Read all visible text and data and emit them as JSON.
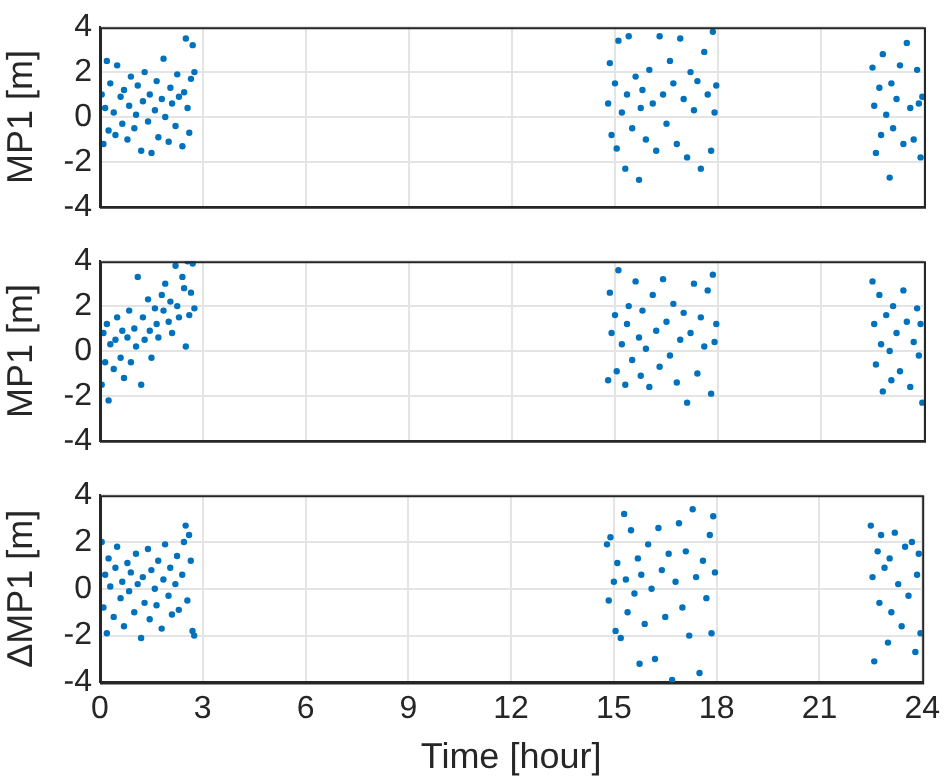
{
  "chart_data": [
    {
      "type": "scatter",
      "ylabel": "MP1 [m]",
      "xlim": [
        0,
        24
      ],
      "xticks": [
        0,
        3,
        6,
        9,
        12,
        15,
        18,
        21,
        24
      ],
      "ylim": [
        -4,
        4
      ],
      "yticks": [
        -4,
        -2,
        0,
        2,
        4
      ],
      "grid": true,
      "tick_labels": "y",
      "marker": "circle",
      "series": [
        {
          "color": "#0072bd",
          "x": [
            0.05,
            0.1,
            0.15,
            0.2,
            0.25,
            0.3,
            0.4,
            0.45,
            0.5,
            0.6,
            0.65,
            0.7,
            0.8,
            0.85,
            0.9,
            1.0,
            1.05,
            1.1,
            1.2,
            1.25,
            1.3,
            1.4,
            1.45,
            1.5,
            1.6,
            1.65,
            1.7,
            1.8,
            1.85,
            1.9,
            2.0,
            2.05,
            2.1,
            2.2,
            2.25,
            2.3,
            2.4,
            2.45,
            2.5,
            2.55,
            2.6,
            2.65,
            2.7,
            2.75,
            14.8,
            14.85,
            14.9,
            15.0,
            15.05,
            15.1,
            15.2,
            15.3,
            15.35,
            15.4,
            15.5,
            15.6,
            15.7,
            15.75,
            15.8,
            15.9,
            16.0,
            16.1,
            16.2,
            16.3,
            16.4,
            16.5,
            16.6,
            16.7,
            16.8,
            16.9,
            17.0,
            17.1,
            17.2,
            17.3,
            17.4,
            17.5,
            17.6,
            17.7,
            17.8,
            17.85,
            17.9,
            17.95,
            22.5,
            22.55,
            22.6,
            22.7,
            22.75,
            22.8,
            22.9,
            23.0,
            23.05,
            23.1,
            23.2,
            23.3,
            23.4,
            23.5,
            23.6,
            23.7,
            23.8,
            23.85,
            23.9,
            23.95
          ],
          "values": [
            1.0,
            -1.2,
            0.4,
            2.5,
            -0.6,
            1.5,
            0.2,
            -0.8,
            2.3,
            0.9,
            -0.3,
            1.2,
            -1.0,
            0.5,
            1.8,
            -0.5,
            0.1,
            1.4,
            -1.5,
            0.7,
            2.0,
            -0.2,
            1.0,
            -1.6,
            0.3,
            1.6,
            -0.9,
            0.8,
            2.6,
            0.0,
            -1.1,
            1.3,
            0.6,
            -0.4,
            1.9,
            0.9,
            -1.3,
            1.1,
            3.5,
            0.4,
            -0.7,
            1.7,
            3.2,
            2.0,
            0.6,
            2.4,
            -0.8,
            1.5,
            -1.4,
            3.4,
            0.2,
            -2.3,
            1.0,
            3.6,
            -0.5,
            1.8,
            -2.8,
            0.4,
            1.2,
            -1.0,
            2.1,
            0.6,
            -1.5,
            3.6,
            1.0,
            -0.3,
            2.5,
            1.5,
            -1.2,
            3.5,
            0.8,
            -1.8,
            2.0,
            0.3,
            1.6,
            -2.3,
            2.9,
            1.0,
            -1.5,
            3.8,
            0.2,
            1.4,
            2.2,
            0.5,
            -1.6,
            1.3,
            -0.8,
            2.8,
            0.1,
            -2.7,
            1.5,
            -0.5,
            0.8,
            2.3,
            -1.2,
            3.3,
            0.4,
            -1.0,
            2.1,
            0.6,
            -1.8,
            0.9
          ]
        }
      ]
    },
    {
      "type": "scatter",
      "ylabel": "MP1 [m]",
      "xlim": [
        0,
        24
      ],
      "xticks": [
        0,
        3,
        6,
        9,
        12,
        15,
        18,
        21,
        24
      ],
      "ylim": [
        -4,
        4
      ],
      "yticks": [
        -4,
        -2,
        0,
        2,
        4
      ],
      "grid": true,
      "tick_labels": "y",
      "marker": "circle",
      "series": [
        {
          "color": "#0072bd",
          "x": [
            0.05,
            0.1,
            0.15,
            0.2,
            0.25,
            0.3,
            0.4,
            0.45,
            0.5,
            0.6,
            0.65,
            0.7,
            0.8,
            0.85,
            0.9,
            1.0,
            1.05,
            1.1,
            1.2,
            1.25,
            1.3,
            1.4,
            1.45,
            1.5,
            1.6,
            1.65,
            1.7,
            1.8,
            1.85,
            1.9,
            2.0,
            2.05,
            2.1,
            2.2,
            2.25,
            2.3,
            2.4,
            2.45,
            2.5,
            2.55,
            2.6,
            2.65,
            2.7,
            2.75,
            14.8,
            14.85,
            14.9,
            15.0,
            15.05,
            15.1,
            15.2,
            15.3,
            15.35,
            15.4,
            15.5,
            15.6,
            15.7,
            15.75,
            15.8,
            15.9,
            16.0,
            16.1,
            16.2,
            16.3,
            16.4,
            16.5,
            16.6,
            16.7,
            16.8,
            16.9,
            17.0,
            17.1,
            17.2,
            17.3,
            17.4,
            17.5,
            17.6,
            17.7,
            17.8,
            17.85,
            17.9,
            17.95,
            22.5,
            22.55,
            22.6,
            22.7,
            22.75,
            22.8,
            22.9,
            23.0,
            23.05,
            23.1,
            23.2,
            23.3,
            23.4,
            23.5,
            23.6,
            23.7,
            23.8,
            23.85,
            23.9,
            23.95
          ],
          "values": [
            -1.5,
            0.8,
            -0.5,
            1.2,
            -2.2,
            0.3,
            -0.8,
            0.5,
            1.5,
            -0.3,
            0.9,
            -1.2,
            0.6,
            1.8,
            -0.5,
            1.0,
            0.2,
            3.3,
            -1.5,
            1.5,
            0.5,
            2.3,
            0.9,
            -0.3,
            1.9,
            1.2,
            0.6,
            2.5,
            1.8,
            3.0,
            1.3,
            2.2,
            0.8,
            3.8,
            2.0,
            1.5,
            3.3,
            2.8,
            0.2,
            4.0,
            1.6,
            2.6,
            3.9,
            1.9,
            -1.3,
            2.6,
            0.8,
            1.6,
            -0.9,
            3.6,
            0.3,
            -1.5,
            1.2,
            2.0,
            -0.4,
            3.1,
            0.6,
            -1.1,
            1.8,
            0.1,
            -1.6,
            2.5,
            0.9,
            -0.7,
            3.2,
            1.3,
            -0.2,
            2.1,
            -1.4,
            0.5,
            1.7,
            -2.3,
            0.8,
            3.0,
            -1.0,
            1.5,
            0.2,
            2.7,
            -1.9,
            3.4,
            0.4,
            1.2,
            3.1,
            1.2,
            -0.6,
            2.5,
            0.3,
            -1.8,
            1.6,
            0.0,
            -1.3,
            2.0,
            0.8,
            -0.9,
            2.7,
            1.3,
            -1.6,
            0.4,
            1.9,
            -0.2,
            1.2,
            -2.3
          ]
        }
      ]
    },
    {
      "type": "scatter",
      "xlabel": "Time [hour]",
      "ylabel": "ΔMP1 [m]",
      "xlim": [
        0,
        24
      ],
      "xticks": [
        0,
        3,
        6,
        9,
        12,
        15,
        18,
        21,
        24
      ],
      "ylim": [
        -4,
        4
      ],
      "yticks": [
        -4,
        -2,
        0,
        2,
        4
      ],
      "grid": true,
      "marker": "circle",
      "series": [
        {
          "color": "#0072bd",
          "x": [
            0.05,
            0.1,
            0.15,
            0.2,
            0.25,
            0.3,
            0.4,
            0.45,
            0.5,
            0.6,
            0.65,
            0.7,
            0.8,
            0.85,
            0.9,
            1.0,
            1.05,
            1.1,
            1.2,
            1.25,
            1.3,
            1.4,
            1.45,
            1.5,
            1.6,
            1.65,
            1.7,
            1.8,
            1.85,
            1.9,
            2.0,
            2.05,
            2.1,
            2.2,
            2.25,
            2.3,
            2.4,
            2.45,
            2.5,
            2.55,
            2.6,
            2.65,
            2.7,
            2.75,
            14.8,
            14.85,
            14.9,
            15.0,
            15.05,
            15.1,
            15.2,
            15.3,
            15.35,
            15.4,
            15.5,
            15.6,
            15.7,
            15.75,
            15.8,
            15.9,
            16.0,
            16.1,
            16.2,
            16.3,
            16.4,
            16.5,
            16.6,
            16.7,
            16.8,
            16.9,
            17.0,
            17.1,
            17.2,
            17.3,
            17.4,
            17.5,
            17.6,
            17.7,
            17.8,
            17.85,
            17.9,
            17.95,
            22.5,
            22.55,
            22.6,
            22.7,
            22.75,
            22.8,
            22.9,
            23.0,
            23.05,
            23.1,
            23.2,
            23.3,
            23.4,
            23.5,
            23.6,
            23.7,
            23.8,
            23.85,
            23.9,
            23.95
          ],
          "values": [
            2.0,
            -0.8,
            0.6,
            -1.9,
            1.3,
            0.1,
            -1.2,
            0.9,
            1.8,
            -0.4,
            0.3,
            -1.6,
            1.1,
            -0.1,
            0.7,
            -1.0,
            1.5,
            0.2,
            -2.1,
            0.5,
            -0.6,
            1.7,
            -1.3,
            0.8,
            0.0,
            -0.7,
            1.2,
            -1.7,
            0.4,
            1.9,
            -0.3,
            0.9,
            -1.1,
            0.2,
            1.4,
            -0.9,
            0.6,
            2.0,
            2.7,
            -0.5,
            2.3,
            1.2,
            -1.8,
            -2.0,
            1.9,
            -0.5,
            2.2,
            0.3,
            -1.8,
            1.1,
            -2.1,
            3.2,
            0.4,
            -1.0,
            2.5,
            -0.2,
            1.3,
            -3.2,
            0.6,
            -1.5,
            1.9,
            0.0,
            -3.0,
            2.6,
            0.8,
            -1.2,
            1.5,
            -3.9,
            0.3,
            2.8,
            -0.8,
            1.6,
            -2.0,
            3.4,
            0.5,
            -3.6,
            1.2,
            -0.4,
            2.3,
            -1.9,
            3.1,
            0.7,
            2.7,
            0.5,
            -3.1,
            1.6,
            -0.6,
            2.3,
            0.9,
            -2.3,
            1.3,
            -1.0,
            2.4,
            0.2,
            -1.6,
            1.8,
            -0.3,
            2.0,
            -2.7,
            0.6,
            1.5,
            -1.9
          ]
        }
      ]
    }
  ]
}
